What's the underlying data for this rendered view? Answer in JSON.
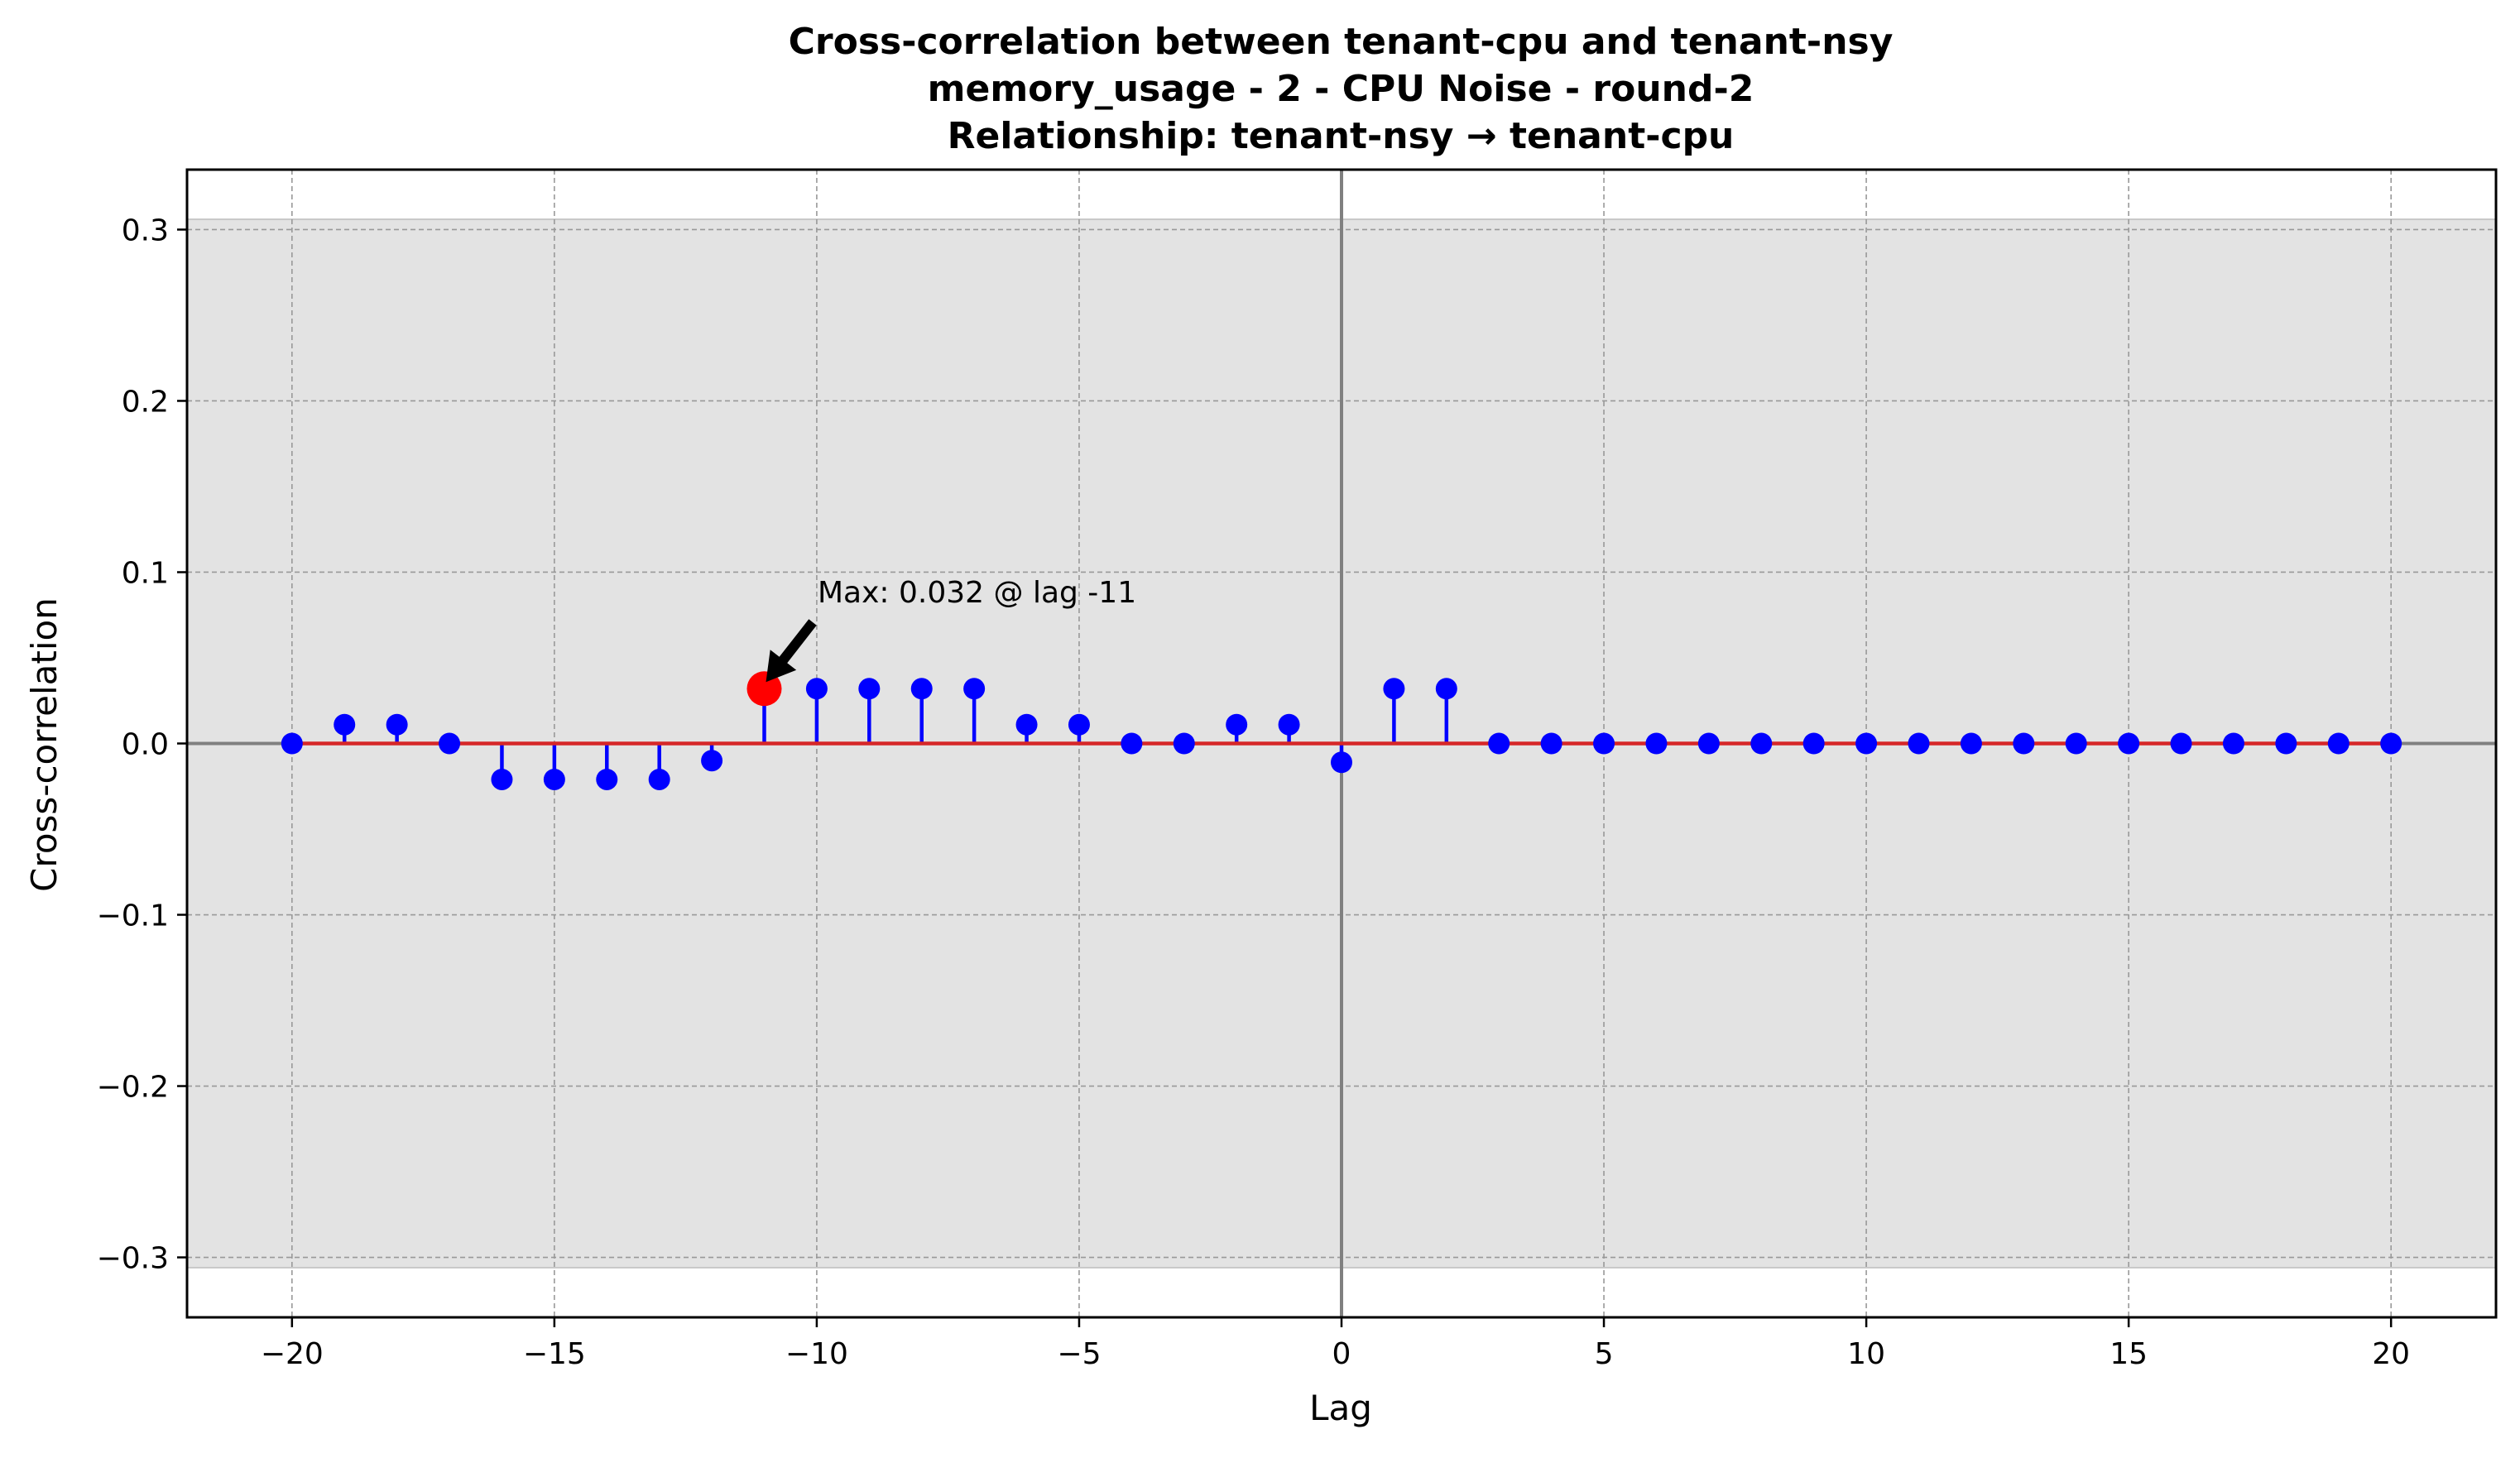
{
  "title_lines": [
    "Cross-correlation between tenant-cpu and tenant-nsy",
    "memory_usage - 2 - CPU Noise - round-2",
    "Relationship: tenant-nsy → tenant-cpu"
  ],
  "chart_data": {
    "type": "stem",
    "xlabel": "Lag",
    "ylabel": "Cross-correlation",
    "xlim": [
      -22,
      22
    ],
    "ylim": [
      -0.335,
      0.335
    ],
    "xticks": [
      -20,
      -15,
      -10,
      -5,
      0,
      5,
      10,
      15,
      20
    ],
    "xtick_labels": [
      "−20",
      "−15",
      "−10",
      "−5",
      "0",
      "5",
      "10",
      "15",
      "20"
    ],
    "yticks": [
      -0.3,
      -0.2,
      -0.1,
      0.0,
      0.1,
      0.2,
      0.3
    ],
    "ytick_labels": [
      "−0.3",
      "−0.2",
      "−0.1",
      "0.0",
      "0.1",
      "0.2",
      "0.3"
    ],
    "grid": true,
    "confidence_band": [
      -0.306,
      0.306
    ],
    "series": [
      {
        "lags": [
          -20,
          -19,
          -18,
          -17,
          -16,
          -15,
          -14,
          -13,
          -12,
          -11,
          -10,
          -9,
          -8,
          -7,
          -6,
          -5,
          -4,
          -3,
          -2,
          -1,
          0,
          1,
          2,
          3,
          4,
          5,
          6,
          7,
          8,
          9,
          10,
          11,
          12,
          13,
          14,
          15,
          16,
          17,
          18,
          19,
          20
        ],
        "values": [
          0.0,
          0.011,
          0.011,
          0.0,
          -0.021,
          -0.021,
          -0.021,
          -0.021,
          -0.01,
          0.032,
          0.032,
          0.032,
          0.032,
          0.032,
          0.011,
          0.011,
          0.0,
          0.0,
          0.011,
          0.011,
          -0.011,
          0.032,
          0.032,
          0.0,
          0.0,
          0.0,
          0.0,
          0.0,
          0.0,
          0.0,
          0.0,
          0.0,
          0.0,
          0.0,
          0.0,
          0.0,
          0.0,
          0.0,
          0.0,
          0.0,
          0.0
        ],
        "color": "#0000ff"
      }
    ],
    "max_point": {
      "lag": -11,
      "value": 0.032,
      "color": "#ff0000"
    },
    "annotation": "Max: 0.032 @ lag -11",
    "colors": {
      "baseline": "#d62728",
      "band": "#e3e3e3",
      "zero_line": "#808080",
      "grid": "#999999"
    }
  }
}
